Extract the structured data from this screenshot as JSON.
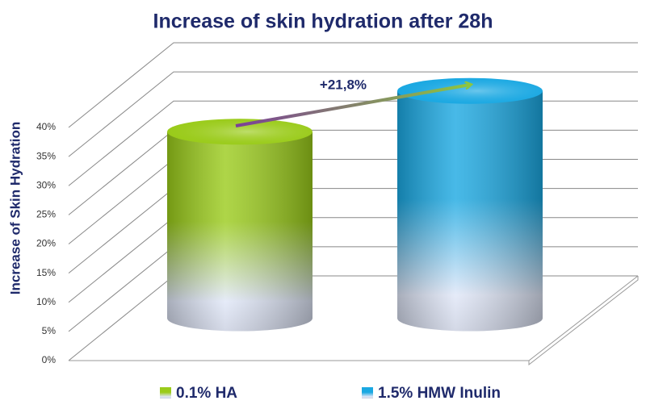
{
  "chart_data": {
    "type": "bar",
    "title": "Increase of skin hydration after 28h",
    "y_label": "Increase of Skin Hydration",
    "annotation": "+21,8%",
    "series": [
      {
        "name": "0.1% HA",
        "color": "#9acb1a",
        "values": [
          32
        ]
      },
      {
        "name": "1.5% HMW Inulin",
        "color": "#1aa8e2",
        "values": [
          39
        ]
      }
    ],
    "ylim": [
      0,
      40
    ],
    "yticks": [
      {
        "value": 0,
        "label": "0%"
      },
      {
        "value": 5,
        "label": "5%"
      },
      {
        "value": 10,
        "label": "10%"
      },
      {
        "value": 15,
        "label": "15%"
      },
      {
        "value": 20,
        "label": "20%"
      },
      {
        "value": 25,
        "label": "25%"
      },
      {
        "value": 30,
        "label": "30%"
      },
      {
        "value": 35,
        "label": "35%"
      },
      {
        "value": 40,
        "label": "40%"
      }
    ],
    "grid": true
  }
}
